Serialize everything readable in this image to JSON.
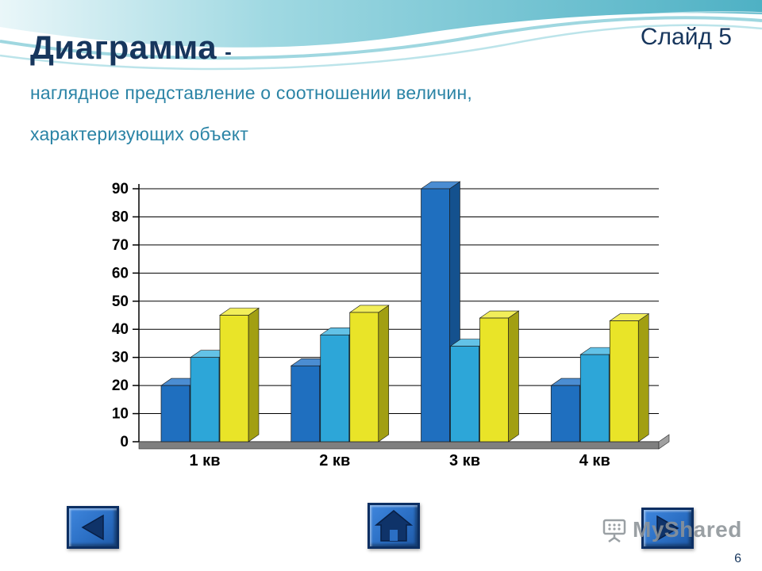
{
  "slide": {
    "slide_label": "Слайд 5",
    "title": "Диаграмма",
    "title_dash": "-",
    "subtitle_line1": "наглядное представление о соотношении величин,",
    "subtitle_line2": "характеризующих объект",
    "page_number": "6"
  },
  "watermark": {
    "text": "MyShared"
  },
  "nav": {
    "back_icon": "left-triangle",
    "home_icon": "house",
    "forward_icon": "right-triangle"
  },
  "colors": {
    "title": "#17365d",
    "subtitle": "#2b84a6",
    "wave_teal": "#2fa3ba",
    "button_blue": "#2b6fc4",
    "button_border": "#0c2f63",
    "icon_navy": "#0f3369",
    "floor_gray": "#7f7f7f"
  },
  "chart_data": {
    "type": "bar",
    "style": "3d-column",
    "title": "",
    "xlabel": "",
    "ylabel": "",
    "categories": [
      "1 кв",
      "2 кв",
      "3 кв",
      "4 кв"
    ],
    "series": [
      {
        "name": "blue",
        "values": [
          20,
          27,
          90,
          20
        ],
        "front": "#1f6fbf",
        "top": "#4b8dd2",
        "side": "#14518e"
      },
      {
        "name": "cyan",
        "values": [
          30,
          38,
          34,
          31
        ],
        "front": "#2da6d8",
        "top": "#63c2e7",
        "side": "#1e7aa5"
      },
      {
        "name": "yellow",
        "values": [
          45,
          46,
          44,
          43
        ],
        "front": "#e9e428",
        "top": "#f2ee5a",
        "side": "#a29f12"
      }
    ],
    "ylim": [
      0,
      90
    ],
    "ytick_step": 10,
    "grid": true,
    "legend": "none"
  }
}
